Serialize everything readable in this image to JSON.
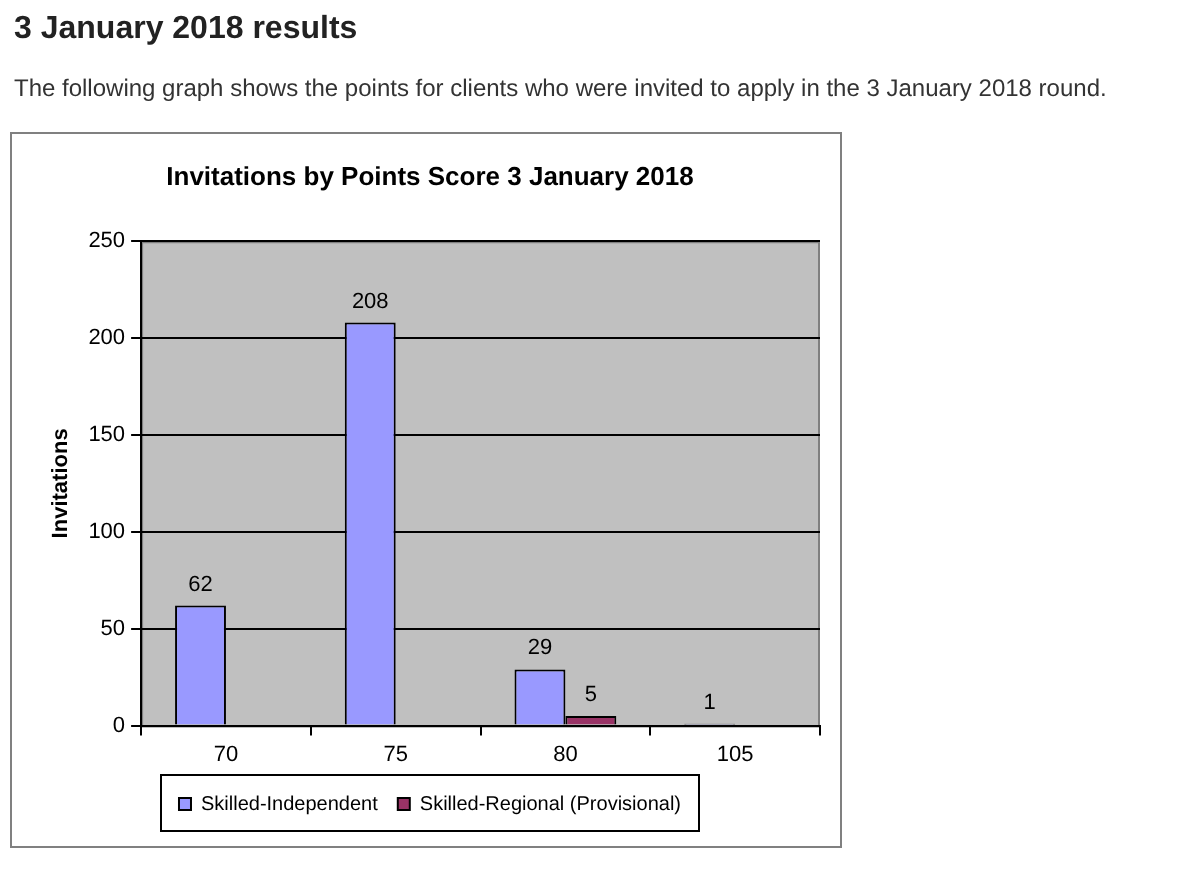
{
  "chart_data": {
    "type": "bar",
    "title": "Invitations by Points Score 3 January 2018",
    "ylabel": "Invitations",
    "annotations": [
      "3 January 2018 results",
      "The following graph shows the points for clients who were invited to apply in the 3 January 2018 round."
    ],
    "categories": [
      "70",
      "75",
      "80",
      "105"
    ],
    "series": [
      {
        "name": "Skilled-Independent",
        "color": "#9999ff",
        "values": [
          62,
          208,
          29,
          1
        ]
      },
      {
        "name": "Skilled-Regional (Provisional)",
        "color": "#993366",
        "values": [
          null,
          null,
          5,
          null
        ]
      }
    ],
    "ylim": [
      0,
      250
    ],
    "yticks": [
      0,
      50,
      100,
      150,
      200,
      250
    ],
    "grid": "y",
    "legend": "bottom",
    "data_labels": true
  }
}
